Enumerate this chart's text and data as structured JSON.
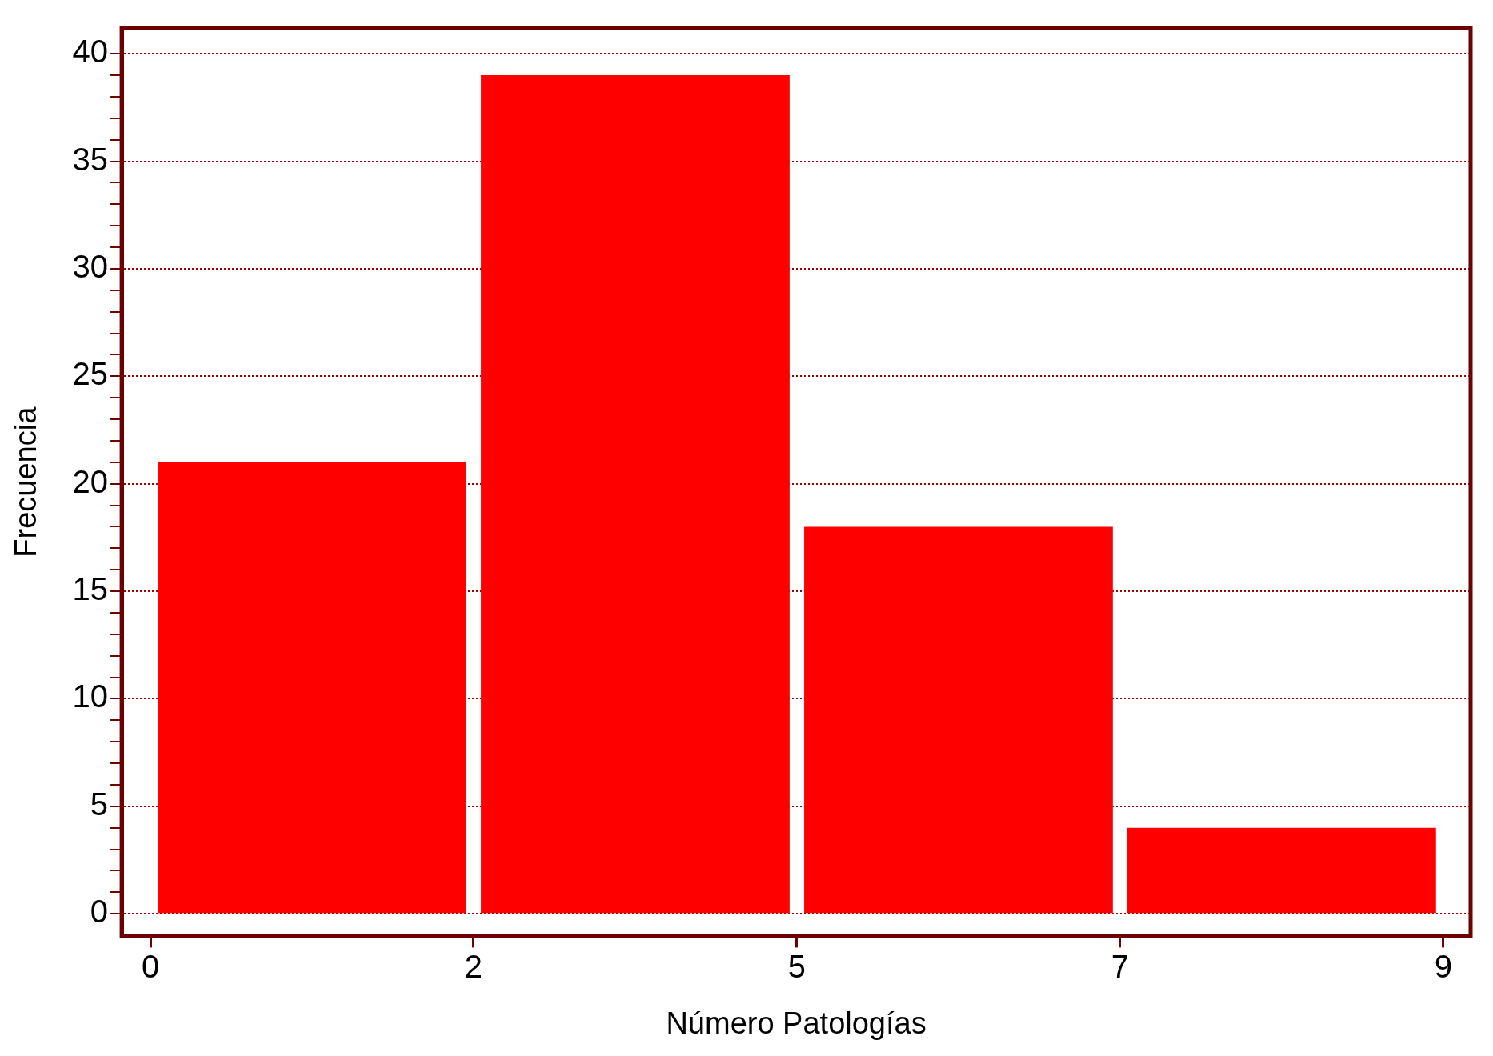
{
  "chart_data": {
    "type": "histogram",
    "xlabel": "Número Patologías",
    "ylabel": "Frecuencia",
    "bins": [
      0,
      2.25,
      4.5,
      6.75,
      9
    ],
    "values": [
      21,
      39,
      18,
      4
    ],
    "color": "#ff0000",
    "xlim": [
      -0.2,
      9.19
    ],
    "xticks": [
      0,
      {
        "value": 2.25,
        "label": "2"
      },
      {
        "value": 4.5,
        "label": "5"
      },
      {
        "value": 6.75,
        "label": "7"
      },
      9
    ],
    "ylim": [
      -1.05,
      41.2
    ],
    "yticks": [
      0,
      {
        "value": 1,
        "label": null
      },
      {
        "value": 2,
        "label": null
      },
      {
        "value": 3,
        "label": null
      },
      {
        "value": 4,
        "label": null
      },
      5,
      {
        "value": 6,
        "label": null
      },
      {
        "value": 7,
        "label": null
      },
      {
        "value": 8,
        "label": null
      },
      {
        "value": 9,
        "label": null
      },
      10,
      {
        "value": 11,
        "label": null
      },
      {
        "value": 12,
        "label": null
      },
      {
        "value": 13,
        "label": null
      },
      {
        "value": 14,
        "label": null
      },
      15,
      {
        "value": 16,
        "label": null
      },
      {
        "value": 17,
        "label": null
      },
      {
        "value": 18,
        "label": null
      },
      {
        "value": 19,
        "label": null
      },
      20,
      {
        "value": 21,
        "label": null
      },
      {
        "value": 22,
        "label": null
      },
      {
        "value": 23,
        "label": null
      },
      {
        "value": 24,
        "label": null
      },
      25,
      {
        "value": 26,
        "label": null
      },
      {
        "value": 27,
        "label": null
      },
      {
        "value": 28,
        "label": null
      },
      {
        "value": 29,
        "label": null
      },
      30,
      {
        "value": 31,
        "label": null
      },
      {
        "value": 32,
        "label": null
      },
      {
        "value": 33,
        "label": null
      },
      {
        "value": 34,
        "label": null
      },
      35,
      {
        "value": 36,
        "label": null
      },
      {
        "value": 37,
        "label": null
      },
      {
        "value": 38,
        "label": null
      },
      {
        "value": 39,
        "label": null
      },
      40
    ],
    "grid": "y"
  }
}
